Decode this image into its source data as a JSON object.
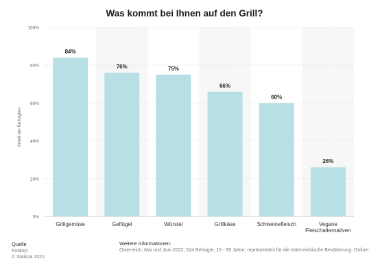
{
  "chart_data": {
    "type": "bar",
    "title": "Was kommt bei Ihnen auf den Grill?",
    "categories": [
      "Grillgemüse",
      "Geflügel",
      "Würstel",
      "Grillkäse",
      "Schweinefleisch",
      "Vegane Fleischalternativen"
    ],
    "values": [
      84,
      76,
      75,
      66,
      60,
      26
    ],
    "value_labels": [
      "84%",
      "76%",
      "75%",
      "66%",
      "60%",
      "26%"
    ],
    "xlabel": "",
    "ylabel": "Anteil der Befragten",
    "ylim": [
      0,
      100
    ],
    "yticks": [
      "0%",
      "20%",
      "40%",
      "60%",
      "80%",
      "100%"
    ],
    "bar_color": "#b8dfe3",
    "grid": true
  },
  "footer": {
    "source_heading": "Quelle",
    "source_name": "Kotányi",
    "copyright": "© Statista 2022",
    "info_heading": "Weitere Informationen:",
    "info_text": "Österreich; Mai und Juni 2022; 524 Befragte; 15 - 59 Jahre; repräsentativ für die österreichische Bevölkerung; Online-Umfrage"
  }
}
